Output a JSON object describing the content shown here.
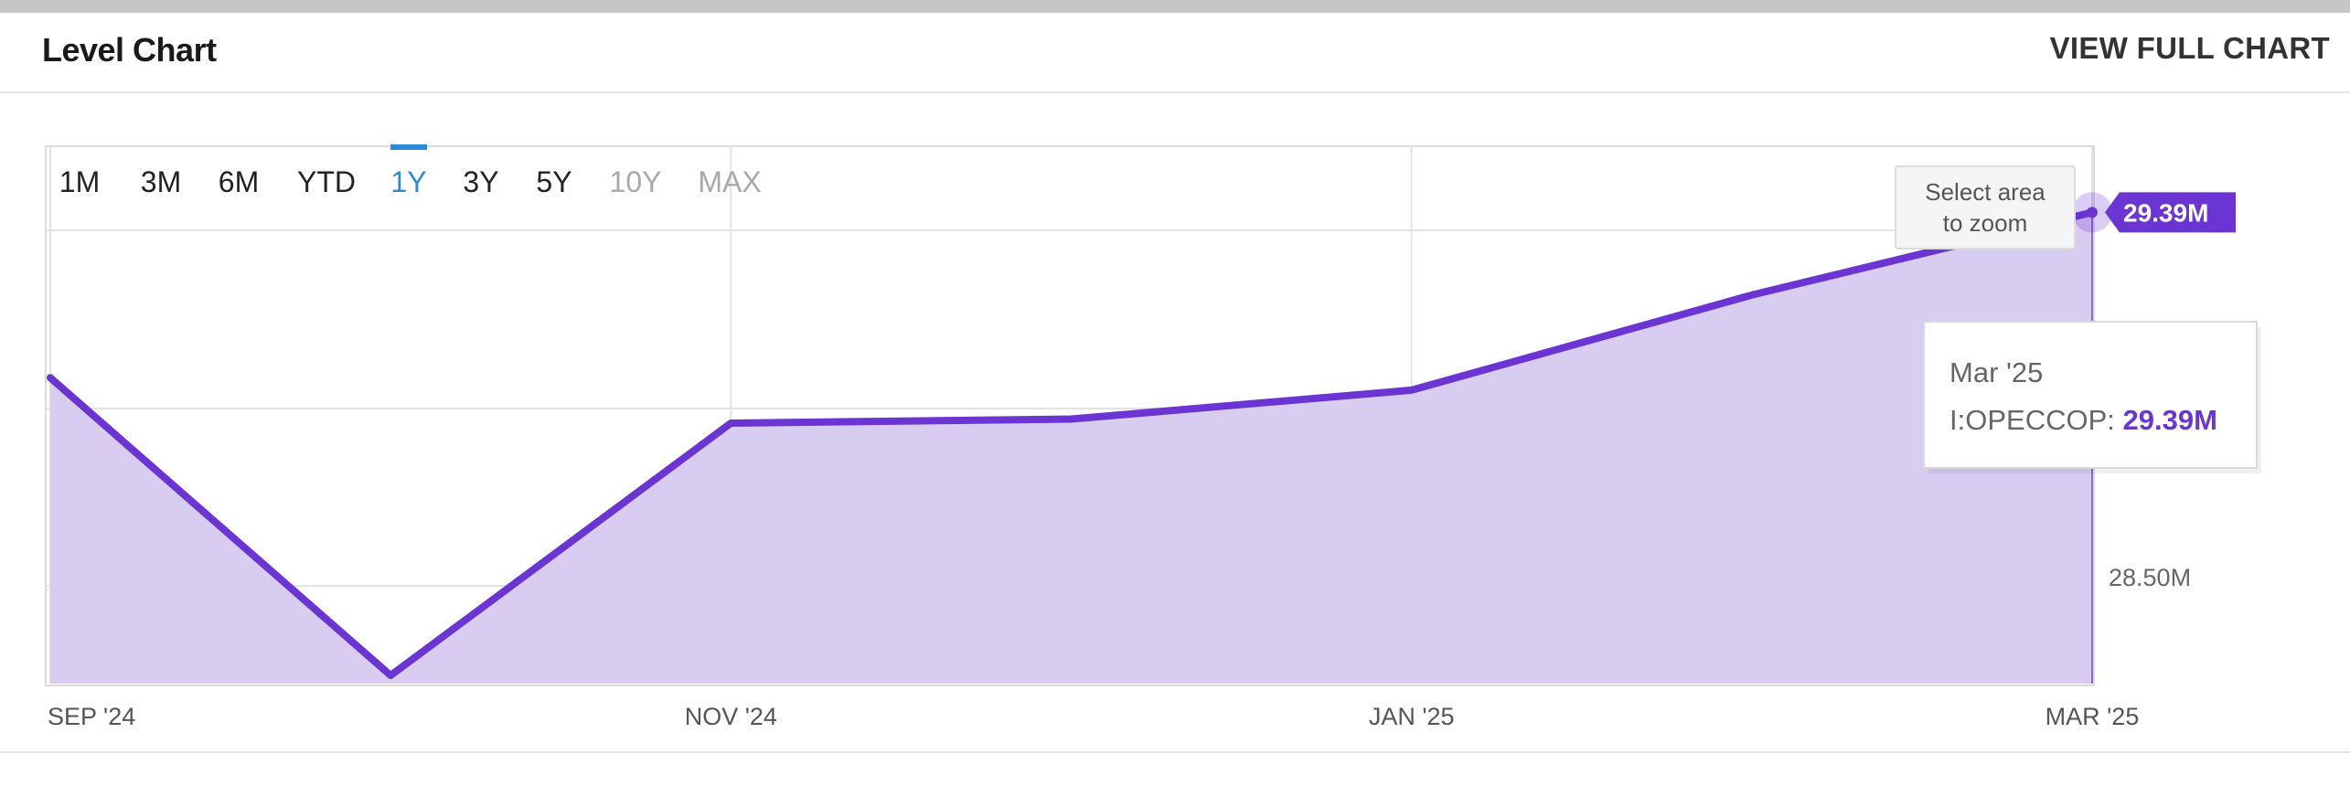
{
  "header": {
    "title": "Level Chart",
    "view_full_chart": "VIEW FULL CHART"
  },
  "range_buttons": [
    {
      "label": "1M",
      "state": "enabled"
    },
    {
      "label": "3M",
      "state": "enabled"
    },
    {
      "label": "6M",
      "state": "enabled"
    },
    {
      "label": "YTD",
      "state": "enabled"
    },
    {
      "label": "1Y",
      "state": "selected"
    },
    {
      "label": "3Y",
      "state": "enabled"
    },
    {
      "label": "5Y",
      "state": "enabled"
    },
    {
      "label": "10Y",
      "state": "disabled"
    },
    {
      "label": "MAX",
      "state": "disabled"
    }
  ],
  "zoom_hint": {
    "line1": "Select area",
    "line2": "to zoom"
  },
  "tooltip": {
    "date": "Mar '25",
    "series": "I:OPECCOP",
    "value": "29.39M"
  },
  "colors": {
    "line": "#6a35d2",
    "fill": "#d8ccf0",
    "selected": "#2a8ad8",
    "disabled": "#a9a9a9",
    "grid": "#e2e2e2"
  },
  "chart_data": {
    "type": "area",
    "x": [
      "Sep '24",
      "Oct '24",
      "Nov '24",
      "Dec '24",
      "Jan '25",
      "Feb '25",
      "Mar '25"
    ],
    "series": [
      {
        "name": "I:OPECCOP",
        "values": [
          28.99,
          28.27,
          28.88,
          28.89,
          28.96,
          29.19,
          29.39
        ]
      }
    ],
    "x_tick_labels": [
      "SEP '24",
      "NOV '24",
      "JAN '25",
      "MAR '25"
    ],
    "y_tick_labels": [
      "28.50M"
    ],
    "ylim": [
      28.25,
      29.55
    ],
    "last_value_label": "29.39M",
    "grid": true,
    "xlabel": "",
    "ylabel": ""
  }
}
